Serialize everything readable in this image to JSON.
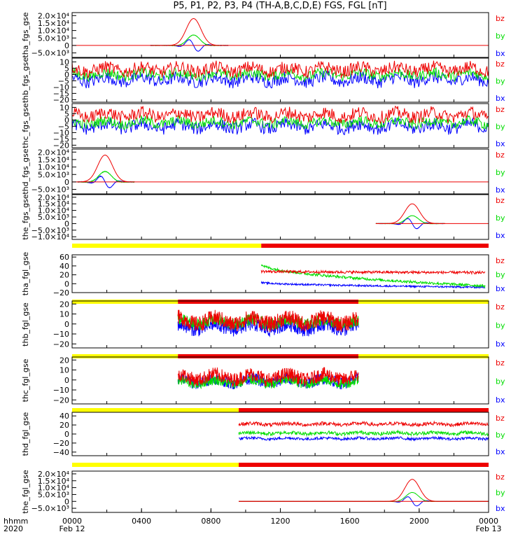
{
  "title": "P5, P1, P2, P3, P4 (TH-A,B,C,D,E) FGS, FGL [nT]",
  "time_axis": {
    "row1_label": "hhmm",
    "row2_label": "2020",
    "ticks": [
      {
        "hour": 0,
        "label": "0000",
        "sublabel": "Feb 12"
      },
      {
        "hour": 4,
        "label": "0400",
        "sublabel": ""
      },
      {
        "hour": 8,
        "label": "0800",
        "sublabel": ""
      },
      {
        "hour": 12,
        "label": "1200",
        "sublabel": ""
      },
      {
        "hour": 16,
        "label": "1600",
        "sublabel": ""
      },
      {
        "hour": 20,
        "label": "2000",
        "sublabel": ""
      },
      {
        "hour": 24,
        "label": "0000",
        "sublabel": "Feb 13"
      }
    ]
  },
  "colors": {
    "bx": "#0000ff",
    "by": "#00dd00",
    "bz": "#ee0000",
    "bar_yellow": "#ffff00",
    "bar_red": "#ee0000"
  },
  "legend": [
    "bz",
    "by",
    "bx"
  ],
  "chart_data": [
    {
      "type": "line",
      "ylabel": "tha_fgs_gse",
      "xlim": [
        0,
        24
      ],
      "ylim": [
        -8000,
        22000
      ],
      "ylog": false,
      "yscale": "linear",
      "ticks": [
        {
          "v": 20000,
          "label": "2.0×10⁴"
        },
        {
          "v": 15000,
          "label": "1.5×10⁴"
        },
        {
          "v": 10000,
          "label": "1.0×10⁴"
        },
        {
          "v": 5000,
          "label": "5.0×10³"
        },
        {
          "v": 0,
          "label": "0"
        },
        {
          "v": -5000,
          "label": "−5.0×10³"
        }
      ],
      "kind": "peak",
      "center": 7.0,
      "width": 0.6,
      "span": [
        4.5,
        9.0
      ],
      "amp": {
        "bz": 18000,
        "by": 7000,
        "bx": -4000
      }
    },
    {
      "type": "line",
      "ylabel": "thb_fgs_gse",
      "xlim": [
        0,
        24
      ],
      "ylim": [
        -22,
        13
      ],
      "yscale": "linear",
      "ticks": [
        {
          "v": 10,
          "label": "10"
        },
        {
          "v": 5,
          "label": "5"
        },
        {
          "v": 0,
          "label": "0"
        },
        {
          "v": -5,
          "label": "−5"
        },
        {
          "v": -10,
          "label": "−10"
        },
        {
          "v": -15,
          "label": "−15"
        },
        {
          "v": -20,
          "label": "−20"
        }
      ],
      "kind": "noisy",
      "span": [
        0,
        24
      ],
      "base": {
        "bz": 4,
        "by": 0,
        "bx": -4
      },
      "noise": {
        "bz": 5,
        "by": 4,
        "bx": 5
      }
    },
    {
      "type": "line",
      "ylabel": "thc_fgs_gse",
      "xlim": [
        0,
        24
      ],
      "ylim": [
        -22,
        13
      ],
      "yscale": "linear",
      "ticks": [
        {
          "v": 10,
          "label": "10"
        },
        {
          "v": 5,
          "label": "5"
        },
        {
          "v": 0,
          "label": "0"
        },
        {
          "v": -5,
          "label": "−5"
        },
        {
          "v": -10,
          "label": "−10"
        },
        {
          "v": -15,
          "label": "−15"
        },
        {
          "v": -20,
          "label": "−20"
        }
      ],
      "kind": "noisy",
      "span": [
        0,
        24
      ],
      "base": {
        "bz": 4,
        "by": -2,
        "bx": -5
      },
      "noise": {
        "bz": 5,
        "by": 4,
        "bx": 5
      }
    },
    {
      "type": "line",
      "ylabel": "thd_fgs_gse",
      "xlim": [
        0,
        24
      ],
      "ylim": [
        -8000,
        22000
      ],
      "yscale": "linear",
      "ticks": [
        {
          "v": 20000,
          "label": "2.0×10⁴"
        },
        {
          "v": 15000,
          "label": "1.5×10⁴"
        },
        {
          "v": 10000,
          "label": "1.0×10⁴"
        },
        {
          "v": 5000,
          "label": "5.0×10³"
        },
        {
          "v": 0,
          "label": "0"
        },
        {
          "v": -5000,
          "label": "−5.0×10³"
        }
      ],
      "kind": "peak",
      "center": 1.9,
      "width": 0.6,
      "span": [
        0.3,
        3.6
      ],
      "amp": {
        "bz": 18000,
        "by": 7000,
        "bx": -4000
      }
    },
    {
      "type": "line",
      "ylabel": "the_fgs_gse",
      "xlim": [
        0,
        24
      ],
      "ylim": [
        -12000,
        22000
      ],
      "yscale": "linear",
      "ticks": [
        {
          "v": 20000,
          "label": "2.0×10⁴"
        },
        {
          "v": 15000,
          "label": "1.5×10⁴"
        },
        {
          "v": 10000,
          "label": "1.0×10⁴"
        },
        {
          "v": 5000,
          "label": "5.0×10³"
        },
        {
          "v": 0,
          "label": "0"
        },
        {
          "v": -5000,
          "label": "−5.0×10³"
        },
        {
          "v": -10000,
          "label": "−1.0×10⁴"
        }
      ],
      "kind": "peak",
      "center": 19.6,
      "width": 0.6,
      "span": [
        17.5,
        21.5
      ],
      "amp": {
        "bz": 15000,
        "by": 6000,
        "bx": -4000
      }
    },
    {
      "type": "line",
      "ylabel": "tha_fgl_gse",
      "xlim": [
        0,
        24
      ],
      "ylim": [
        -20,
        65
      ],
      "yscale": "linear",
      "ticks": [
        {
          "v": 60,
          "label": "60"
        },
        {
          "v": 40,
          "label": "40"
        },
        {
          "v": 20,
          "label": "20"
        },
        {
          "v": 0,
          "label": "0"
        },
        {
          "v": -20,
          "label": "−20"
        }
      ],
      "kind": "trend",
      "span": [
        10.9,
        23.8
      ],
      "trend": {
        "bz": [
          28,
          25
        ],
        "by": [
          45,
          -5
        ],
        "bx": [
          3,
          -8
        ]
      },
      "noise": {
        "bz": 3,
        "by": 3,
        "bx": 2
      },
      "bar": {
        "yellow": [
          0,
          10.9
        ],
        "red": [
          10.9,
          24
        ]
      }
    },
    {
      "type": "line",
      "ylabel": "thb_fgl_gse",
      "xlim": [
        0,
        24
      ],
      "ylim": [
        -24,
        23
      ],
      "yscale": "linear",
      "ticks": [
        {
          "v": 20,
          "label": "20"
        },
        {
          "v": 10,
          "label": "10"
        },
        {
          "v": 0,
          "label": "0"
        },
        {
          "v": -10,
          "label": "−10"
        },
        {
          "v": -20,
          "label": "−20"
        }
      ],
      "kind": "noisy",
      "span": [
        6.1,
        16.5
      ],
      "base": {
        "bz": 3,
        "by": 2,
        "bx": -3
      },
      "noise": {
        "bz": 8,
        "by": 6,
        "bx": 7
      },
      "bar": {
        "yellow": [
          0,
          6.1
        ],
        "red": [
          6.1,
          16.5
        ],
        "yellow2": [
          16.5,
          24
        ]
      }
    },
    {
      "type": "line",
      "ylabel": "thc_fgl_gse",
      "xlim": [
        0,
        24
      ],
      "ylim": [
        -24,
        23
      ],
      "yscale": "linear",
      "ticks": [
        {
          "v": 20,
          "label": "20"
        },
        {
          "v": 10,
          "label": "10"
        },
        {
          "v": 0,
          "label": "0"
        },
        {
          "v": -10,
          "label": "−10"
        },
        {
          "v": -20,
          "label": "−20"
        }
      ],
      "kind": "noisy",
      "span": [
        6.1,
        16.5
      ],
      "base": {
        "bz": 3,
        "by": -2,
        "bx": -1
      },
      "noise": {
        "bz": 7,
        "by": 5,
        "bx": 6
      },
      "bar": {
        "yellow": [
          0,
          6.1
        ],
        "red": [
          6.1,
          16.5
        ],
        "yellow2": [
          16.5,
          24
        ]
      }
    },
    {
      "type": "line",
      "ylabel": "thd_fgl_gse",
      "xlim": [
        0,
        24
      ],
      "ylim": [
        -48,
        48
      ],
      "yscale": "linear",
      "ticks": [
        {
          "v": 40,
          "label": "40"
        },
        {
          "v": 20,
          "label": "20"
        },
        {
          "v": 0,
          "label": "0"
        },
        {
          "v": -20,
          "label": "−20"
        },
        {
          "v": -40,
          "label": "−40"
        }
      ],
      "kind": "noisy",
      "span": [
        9.6,
        24
      ],
      "base": {
        "bz": 22,
        "by": 2,
        "bx": -10
      },
      "noise": {
        "bz": 4,
        "by": 4,
        "bx": 3
      },
      "bar": {
        "yellow": [
          0,
          9.6
        ],
        "red": [
          9.6,
          24
        ]
      }
    },
    {
      "type": "line",
      "ylabel": "the_fgl_gse",
      "xlim": [
        0,
        24
      ],
      "ylim": [
        -8000,
        22000
      ],
      "yscale": "linear",
      "ticks": [
        {
          "v": 20000,
          "label": "2.0×10⁴"
        },
        {
          "v": 15000,
          "label": "1.5×10⁴"
        },
        {
          "v": 10000,
          "label": "1.0×10⁴"
        },
        {
          "v": 5000,
          "label": "5.0×10³"
        },
        {
          "v": 0,
          "label": "0"
        },
        {
          "v": -5000,
          "label": "−5.0×10³"
        }
      ],
      "kind": "peak",
      "center": 19.6,
      "width": 0.6,
      "span": [
        9.6,
        24
      ],
      "amp": {
        "bz": 16000,
        "by": 6500,
        "bx": -3500
      },
      "bar": {
        "yellow": [
          0,
          9.6
        ],
        "red": [
          9.6,
          24
        ]
      }
    }
  ]
}
